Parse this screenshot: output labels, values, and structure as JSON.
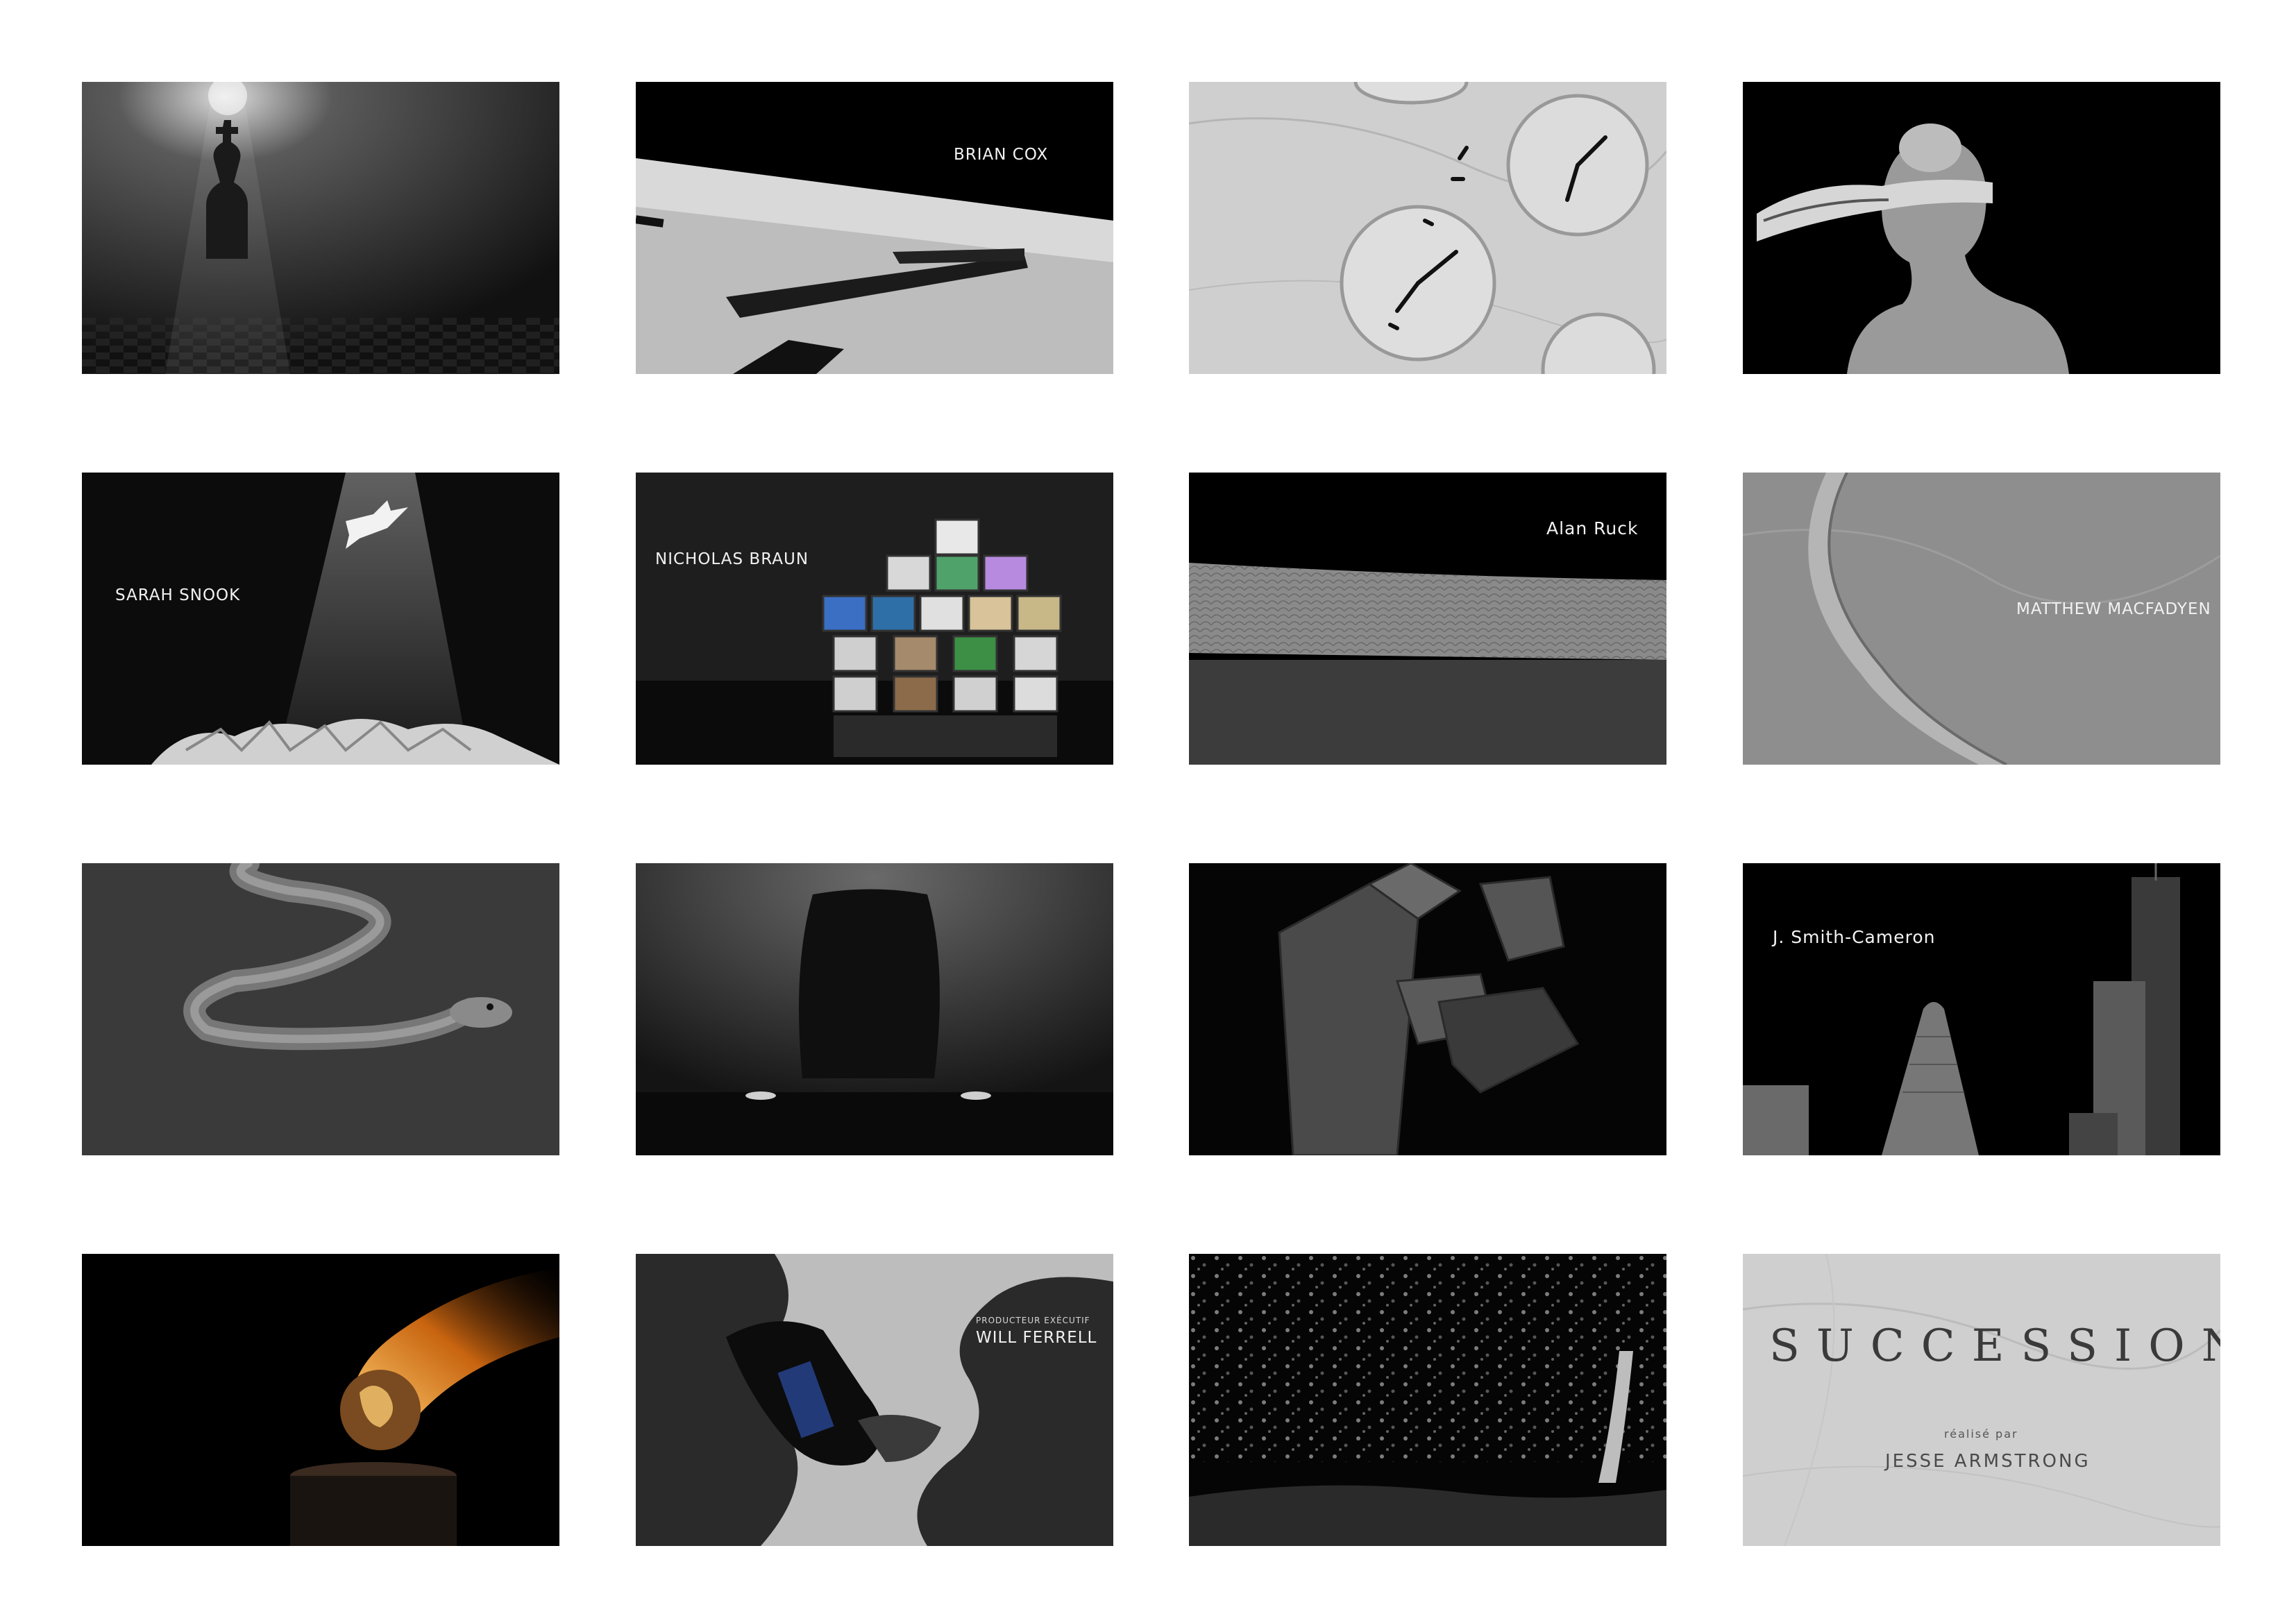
{
  "frames": {
    "f2": {
      "caption": "BRIAN COX"
    },
    "f5": {
      "caption": "SARAH SNOOK"
    },
    "f6": {
      "caption": "NICHOLAS BRAUN"
    },
    "f7": {
      "caption": "Alan Ruck"
    },
    "f8": {
      "caption": "MATTHEW MACFADYEN"
    },
    "f12": {
      "caption": "J. Smith-Cameron"
    },
    "f14": {
      "role": "PRODUCTEUR EXÉCUTIF",
      "caption": "WILL FERRELL"
    },
    "f16": {
      "title": "SUCCESSION",
      "subtitle": "réalisé par",
      "director": "JESSE ARMSTRONG"
    }
  }
}
